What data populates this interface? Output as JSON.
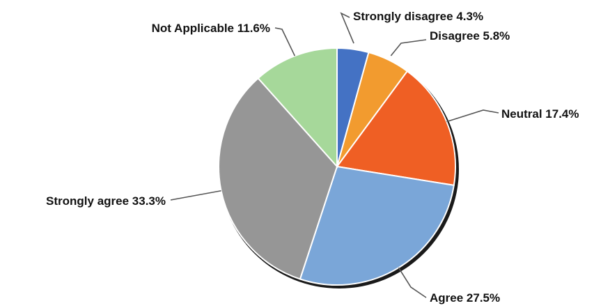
{
  "chart_data": {
    "type": "pie",
    "start_angle_deg": 0,
    "direction": "clockwise",
    "slices": [
      {
        "label": "Strongly disagree",
        "value": 4.3,
        "display": "Strongly disagree 4.3%",
        "color": "#4472c4"
      },
      {
        "label": "Disagree",
        "value": 5.8,
        "display": "Disagree 5.8%",
        "color": "#f29b2f"
      },
      {
        "label": "Neutral",
        "value": 17.4,
        "display": "Neutral 17.4%",
        "color": "#ef5f24"
      },
      {
        "label": "Agree",
        "value": 27.5,
        "display": "Agree 27.5%",
        "color": "#7aa6d8"
      },
      {
        "label": "Strongly agree",
        "value": 33.3,
        "display": "Strongly agree 33.3%",
        "color": "#969696"
      },
      {
        "label": "Not Applicable",
        "value": 11.6,
        "display": "Not Applicable 11.6%",
        "color": "#a6d89a"
      }
    ]
  }
}
